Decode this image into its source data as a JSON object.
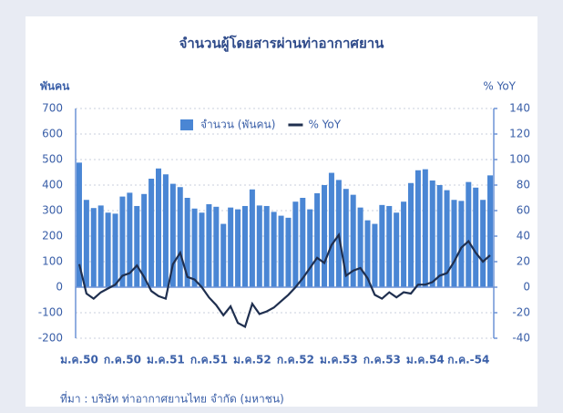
{
  "chart_data": {
    "type": "bar-line",
    "title": "จำนวนผู้โดยสารผ่านท่าอากาศยาน",
    "y_label": "พันคน",
    "y2_label": "% YoY",
    "source": "ที่มา : บริษัท ท่าอากาศยานไทย จำกัด (มหาชน)",
    "categories": [
      "ม.ค.50",
      null,
      null,
      null,
      null,
      null,
      "ก.ค.50",
      null,
      null,
      null,
      null,
      null,
      "ม.ค.51",
      null,
      null,
      null,
      null,
      null,
      "ก.ค.51",
      null,
      null,
      null,
      null,
      null,
      "ม.ค.52",
      null,
      null,
      null,
      null,
      null,
      "ก.ค.52",
      null,
      null,
      null,
      null,
      null,
      "ม.ค.53",
      null,
      null,
      null,
      null,
      null,
      "ก.ค.53",
      null,
      null,
      null,
      null,
      null,
      "ม.ค.54",
      null,
      null,
      null,
      null,
      null,
      "ก.ค.-54",
      null,
      null,
      null
    ],
    "series": [
      {
        "name": "จำนวน (พันคน)",
        "type": "bar",
        "color": "#4a86d4",
        "values": [
          488,
          342,
          310,
          320,
          292,
          288,
          355,
          370,
          318,
          365,
          425,
          465,
          442,
          405,
          392,
          350,
          308,
          292,
          325,
          315,
          248,
          312,
          305,
          318,
          383,
          320,
          318,
          295,
          280,
          272,
          335,
          350,
          305,
          368,
          400,
          448,
          420,
          385,
          362,
          312,
          262,
          248,
          322,
          318,
          292,
          335,
          408,
          458,
          462,
          418,
          400,
          380,
          342,
          338,
          412,
          390,
          342,
          438
        ]
      },
      {
        "name": "% YoY",
        "type": "line",
        "axis": "y2",
        "color": "#1f2f4f",
        "values": [
          18,
          -5,
          -9,
          -4,
          -1,
          2,
          9,
          11,
          17,
          8,
          -3,
          -7,
          -9,
          18,
          27,
          8,
          6,
          0,
          -8,
          -14,
          -22,
          -15,
          -28,
          -31,
          -13,
          -21,
          -19,
          -16,
          -11,
          -6,
          0,
          7,
          15,
          23,
          19,
          33,
          41,
          9,
          13,
          15,
          7,
          -6,
          -9,
          -4,
          -8,
          -4,
          -5,
          2,
          2,
          4,
          9,
          11,
          20,
          31,
          36,
          27,
          20,
          25
        ]
      }
    ],
    "ylim": [
      -200,
      700
    ],
    "yticks": [
      -200,
      -100,
      0,
      100,
      200,
      300,
      400,
      500,
      600,
      700
    ],
    "y2lim": [
      -40,
      140
    ],
    "y2ticks": [
      -40,
      -20,
      0,
      20,
      40,
      60,
      80,
      100,
      120,
      140
    ],
    "grid": true
  }
}
